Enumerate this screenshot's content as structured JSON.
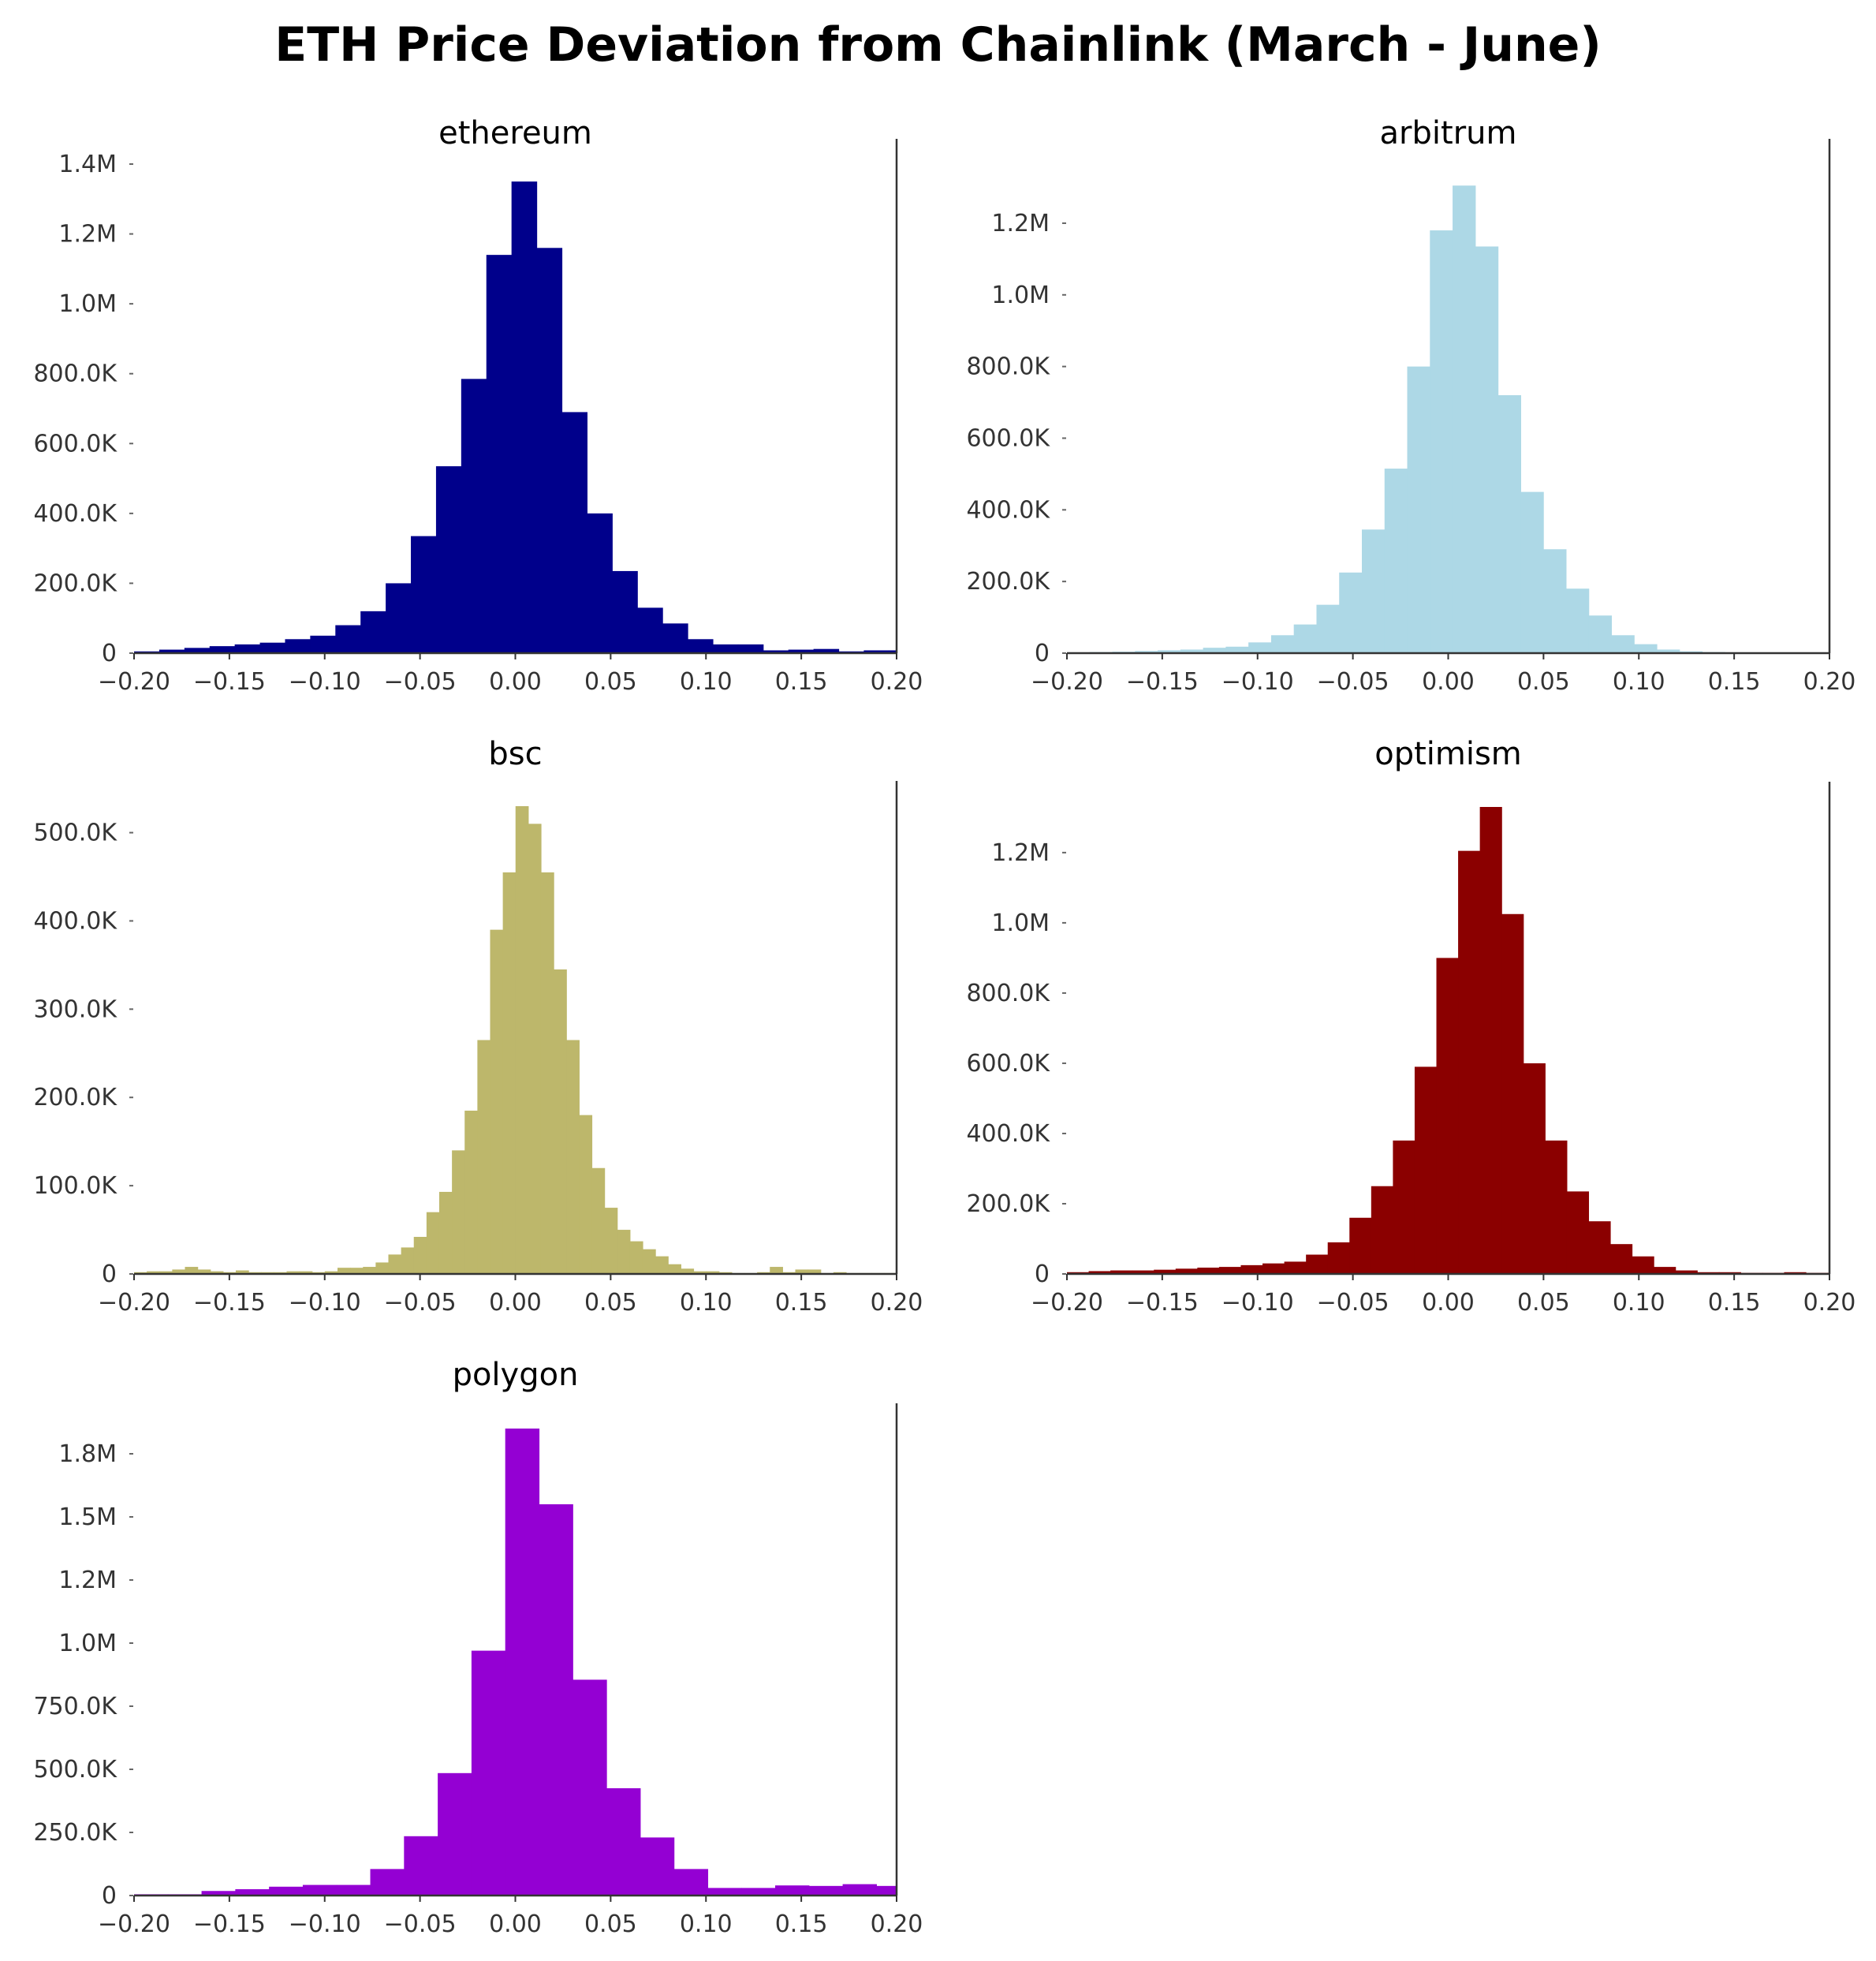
{
  "figure": {
    "title": "ETH Price Deviation from Chainlink (March - June)"
  },
  "chart_data": [
    {
      "type": "bar",
      "title": "ethereum",
      "color": "#00008b",
      "xlim": [
        -0.2,
        0.2
      ],
      "ylim": [
        0,
        1400000
      ],
      "x_ticks": [
        -0.2,
        -0.15,
        -0.1,
        -0.05,
        0.0,
        0.05,
        0.1,
        0.15,
        0.2
      ],
      "x_tick_labels": [
        "−0.20",
        "−0.15",
        "−0.10",
        "−0.05",
        "0.00",
        "0.05",
        "0.10",
        "0.15",
        "0.20"
      ],
      "y_ticks": [
        0,
        200000,
        400000,
        600000,
        800000,
        1000000,
        1200000,
        1400000
      ],
      "y_tick_labels": [
        "0",
        "200.0K",
        "400.0K",
        "600.0K",
        "800.0K",
        "1.0M",
        "1.2M",
        "1.4M"
      ],
      "bins": {
        "start": -0.2,
        "width": 0.0132
      },
      "values": [
        5000,
        10000,
        15000,
        20000,
        25000,
        30000,
        40000,
        50000,
        80000,
        120000,
        200000,
        335000,
        535000,
        785000,
        1140000,
        1350000,
        1160000,
        690000,
        400000,
        235000,
        130000,
        85000,
        40000,
        25000,
        25000,
        8000,
        10000,
        12000,
        5000,
        8000,
        8000
      ]
    },
    {
      "type": "bar",
      "title": "arbitrum",
      "color": "#add8e6",
      "xlim": [
        -0.2,
        0.2
      ],
      "ylim": [
        0,
        1310000
      ],
      "x_ticks": [
        -0.2,
        -0.15,
        -0.1,
        -0.05,
        0.0,
        0.05,
        0.1,
        0.15,
        0.2
      ],
      "x_tick_labels": [
        "−0.20",
        "−0.15",
        "−0.10",
        "−0.05",
        "0.00",
        "0.05",
        "0.10",
        "0.15",
        "0.20"
      ],
      "y_ticks": [
        0,
        200000,
        400000,
        600000,
        800000,
        1000000,
        1200000
      ],
      "y_tick_labels": [
        "0",
        "200.0K",
        "400.0K",
        "600.0K",
        "800.0K",
        "1.0M",
        "1.2M"
      ],
      "bins": {
        "start": -0.2,
        "width": 0.0119
      },
      "values": [
        2000,
        3000,
        4000,
        6000,
        8000,
        10000,
        15000,
        18000,
        30000,
        50000,
        80000,
        135000,
        225000,
        345000,
        515000,
        800000,
        1180000,
        1305000,
        1135000,
        720000,
        450000,
        290000,
        180000,
        105000,
        50000,
        25000,
        10000,
        5000,
        3000,
        2000,
        2000,
        1000,
        1000,
        1000
      ]
    },
    {
      "type": "bar",
      "title": "bsc",
      "color": "#bdb76b",
      "xlim": [
        -0.2,
        0.2
      ],
      "ylim": [
        0,
        530000
      ],
      "x_ticks": [
        -0.2,
        -0.15,
        -0.1,
        -0.05,
        0.0,
        0.05,
        0.1,
        0.15,
        0.2
      ],
      "x_tick_labels": [
        "−0.20",
        "−0.15",
        "−0.10",
        "−0.05",
        "0.00",
        "0.05",
        "0.10",
        "0.15",
        "0.20"
      ],
      "y_ticks": [
        0,
        100000,
        200000,
        300000,
        400000,
        500000
      ],
      "y_tick_labels": [
        "0",
        "100.0K",
        "200.0K",
        "300.0K",
        "400.0K",
        "500.0K"
      ],
      "bins": {
        "start": -0.2,
        "width": 0.00667
      },
      "values": [
        2000,
        3000,
        3000,
        5000,
        8000,
        5000,
        3000,
        2000,
        4000,
        2000,
        2000,
        2000,
        3000,
        3000,
        2000,
        3000,
        7000,
        7000,
        8000,
        13000,
        22000,
        30000,
        42000,
        70000,
        93000,
        140000,
        185000,
        265000,
        390000,
        455000,
        530000,
        510000,
        455000,
        345000,
        265000,
        180000,
        120000,
        75000,
        50000,
        37000,
        28000,
        20000,
        11000,
        6000,
        3000,
        3000,
        2000,
        1000,
        1000,
        2000,
        8000,
        2000,
        5000,
        5000,
        1000,
        2000,
        1000,
        1000,
        1000,
        1000
      ]
    },
    {
      "type": "bar",
      "title": "optimism",
      "color": "#8b0000",
      "xlim": [
        -0.2,
        0.2
      ],
      "ylim": [
        0,
        1330000
      ],
      "x_ticks": [
        -0.2,
        -0.15,
        -0.1,
        -0.05,
        0.0,
        0.05,
        0.1,
        0.15,
        0.2
      ],
      "x_tick_labels": [
        "−0.20",
        "−0.15",
        "−0.10",
        "−0.05",
        "0.00",
        "0.05",
        "0.10",
        "0.15",
        "0.20"
      ],
      "y_ticks": [
        0,
        200000,
        400000,
        600000,
        800000,
        1000000,
        1200000
      ],
      "y_tick_labels": [
        "0",
        "200.0K",
        "400.0K",
        "600.0K",
        "800.0K",
        "1.0M",
        "1.2M"
      ],
      "bins": {
        "start": -0.2,
        "width": 0.0114
      },
      "values": [
        5000,
        8000,
        10000,
        10000,
        12000,
        15000,
        18000,
        20000,
        25000,
        30000,
        35000,
        55000,
        90000,
        160000,
        250000,
        380000,
        590000,
        900000,
        1205000,
        1330000,
        1025000,
        600000,
        380000,
        235000,
        150000,
        85000,
        50000,
        20000,
        10000,
        5000,
        5000,
        3000,
        3000,
        5000,
        3000,
        3000
      ]
    },
    {
      "type": "bar",
      "title": "polygon",
      "color": "#9400d3",
      "xlim": [
        -0.2,
        0.2
      ],
      "ylim": [
        0,
        1850000
      ],
      "x_ticks": [
        -0.2,
        -0.15,
        -0.1,
        -0.05,
        0.0,
        0.05,
        0.1,
        0.15,
        0.2
      ],
      "x_tick_labels": [
        "−0.20",
        "−0.15",
        "−0.10",
        "−0.05",
        "0.00",
        "0.05",
        "0.10",
        "0.15",
        "0.20"
      ],
      "y_ticks": [
        0,
        250000,
        500000,
        750000,
        1000000,
        1250000,
        1500000,
        1750000
      ],
      "y_tick_labels": [
        "0",
        "250.0K",
        "500.0K",
        "750.0K",
        "1.0M",
        "1.2M",
        "1.5M",
        "1.8M"
      ],
      "bins": {
        "start": -0.2,
        "width": 0.0177
      },
      "values": [
        5000,
        5000,
        18000,
        25000,
        35000,
        42000,
        42000,
        105000,
        235000,
        485000,
        970000,
        1850000,
        1550000,
        855000,
        425000,
        230000,
        105000,
        30000,
        30000,
        40000,
        38000,
        45000,
        38000,
        20000
      ]
    }
  ]
}
